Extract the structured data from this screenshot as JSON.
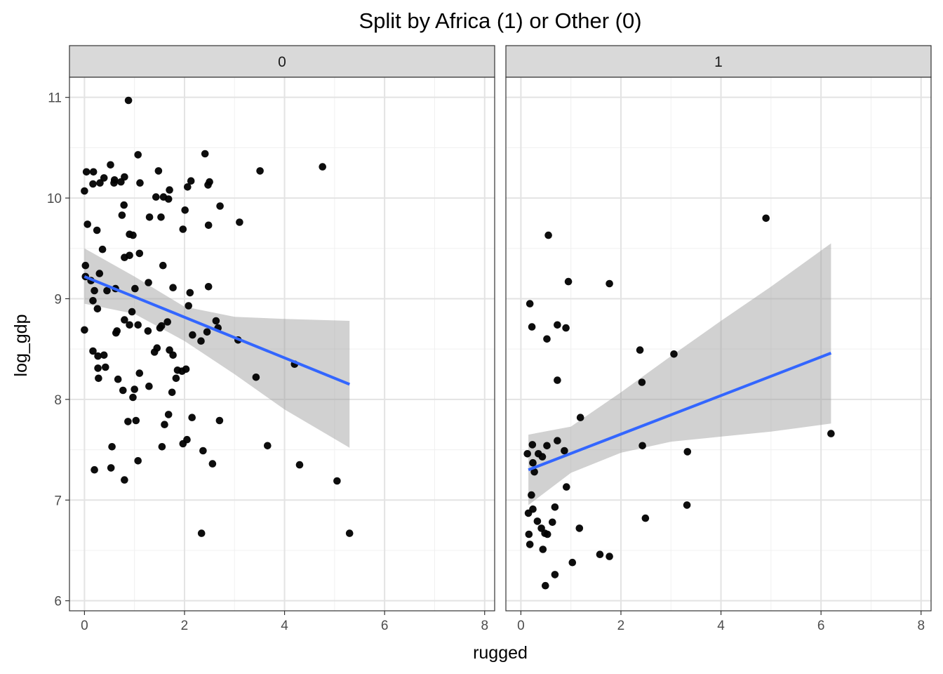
{
  "chart_data": {
    "type": "scatter",
    "title": "Split by Africa (1) or Other (0)",
    "xlabel": "rugged",
    "ylabel": "log_gdp",
    "facet_by": "Africa",
    "xlim": [
      -0.3,
      8.2
    ],
    "ylim": [
      5.9,
      11.2
    ],
    "x_ticks": [
      0,
      2,
      4,
      6,
      8
    ],
    "y_ticks": [
      6,
      7,
      8,
      9,
      10,
      11
    ],
    "grid": true,
    "point_color": "#000000",
    "line_color": "#3366FF",
    "band_color": "#999999",
    "panels": [
      {
        "label": "0",
        "fit": {
          "x": [
            0.0,
            5.3
          ],
          "y": [
            9.22,
            8.15
          ]
        },
        "band": {
          "x": [
            0.0,
            1.0,
            2.0,
            3.0,
            4.0,
            5.3
          ],
          "lower": [
            8.95,
            8.85,
            8.58,
            8.25,
            7.9,
            7.52
          ],
          "upper": [
            9.5,
            9.22,
            8.92,
            8.82,
            8.8,
            8.78
          ]
        },
        "points": [
          [
            0.88,
            10.97
          ],
          [
            0.04,
            10.26
          ],
          [
            0.18,
            10.26
          ],
          [
            0.31,
            10.15
          ],
          [
            0.39,
            10.2
          ],
          [
            0.52,
            10.33
          ],
          [
            0.6,
            10.18
          ],
          [
            0.73,
            10.16
          ],
          [
            0.8,
            10.21
          ],
          [
            0.0,
            10.07
          ],
          [
            0.17,
            10.14
          ],
          [
            0.59,
            10.15
          ],
          [
            1.07,
            10.43
          ],
          [
            1.11,
            10.15
          ],
          [
            1.48,
            10.27
          ],
          [
            1.7,
            10.08
          ],
          [
            2.06,
            10.11
          ],
          [
            2.13,
            10.17
          ],
          [
            2.41,
            10.44
          ],
          [
            2.47,
            10.13
          ],
          [
            2.5,
            10.16
          ],
          [
            3.51,
            10.27
          ],
          [
            4.76,
            10.31
          ],
          [
            0.79,
            9.93
          ],
          [
            0.75,
            9.83
          ],
          [
            1.3,
            9.81
          ],
          [
            1.43,
            10.01
          ],
          [
            1.53,
            9.81
          ],
          [
            1.58,
            10.01
          ],
          [
            1.68,
            9.99
          ],
          [
            2.01,
            9.88
          ],
          [
            2.71,
            9.92
          ],
          [
            0.06,
            9.74
          ],
          [
            0.25,
            9.68
          ],
          [
            0.9,
            9.64
          ],
          [
            0.97,
            9.63
          ],
          [
            1.97,
            9.69
          ],
          [
            2.48,
            9.73
          ],
          [
            3.1,
            9.76
          ],
          [
            0.36,
            9.49
          ],
          [
            0.8,
            9.41
          ],
          [
            0.9,
            9.43
          ],
          [
            1.1,
            9.45
          ],
          [
            1.57,
            9.33
          ],
          [
            0.02,
            9.33
          ],
          [
            0.02,
            9.22
          ],
          [
            0.3,
            9.25
          ],
          [
            1.28,
            9.16
          ],
          [
            0.13,
            9.18
          ],
          [
            0.45,
            9.08
          ],
          [
            0.62,
            9.1
          ],
          [
            1.01,
            9.1
          ],
          [
            1.77,
            9.11
          ],
          [
            2.48,
            9.12
          ],
          [
            2.11,
            9.06
          ],
          [
            0.2,
            9.08
          ],
          [
            0.17,
            8.98
          ],
          [
            0.26,
            8.9
          ],
          [
            0.95,
            8.87
          ],
          [
            2.08,
            8.93
          ],
          [
            0.0,
            8.69
          ],
          [
            0.8,
            8.79
          ],
          [
            0.9,
            8.74
          ],
          [
            1.07,
            8.74
          ],
          [
            0.65,
            8.68
          ],
          [
            0.63,
            8.66
          ],
          [
            1.27,
            8.68
          ],
          [
            1.51,
            8.71
          ],
          [
            1.54,
            8.73
          ],
          [
            1.66,
            8.77
          ],
          [
            2.45,
            8.67
          ],
          [
            2.63,
            8.78
          ],
          [
            2.67,
            8.71
          ],
          [
            2.16,
            8.64
          ],
          [
            2.33,
            8.58
          ],
          [
            3.07,
            8.59
          ],
          [
            0.17,
            8.48
          ],
          [
            0.27,
            8.43
          ],
          [
            0.39,
            8.44
          ],
          [
            1.4,
            8.47
          ],
          [
            1.45,
            8.51
          ],
          [
            1.7,
            8.49
          ],
          [
            1.77,
            8.44
          ],
          [
            4.2,
            8.35
          ],
          [
            0.27,
            8.31
          ],
          [
            0.42,
            8.32
          ],
          [
            1.1,
            8.26
          ],
          [
            1.86,
            8.29
          ],
          [
            1.95,
            8.28
          ],
          [
            2.03,
            8.3
          ],
          [
            0.28,
            8.21
          ],
          [
            0.67,
            8.2
          ],
          [
            1.29,
            8.13
          ],
          [
            1.83,
            8.21
          ],
          [
            3.43,
            8.22
          ],
          [
            0.77,
            8.09
          ],
          [
            0.97,
            8.02
          ],
          [
            1.0,
            8.1
          ],
          [
            1.75,
            8.07
          ],
          [
            1.68,
            7.85
          ],
          [
            0.87,
            7.78
          ],
          [
            1.03,
            7.79
          ],
          [
            1.6,
            7.75
          ],
          [
            2.15,
            7.82
          ],
          [
            2.7,
            7.79
          ],
          [
            2.05,
            7.6
          ],
          [
            1.97,
            7.56
          ],
          [
            0.55,
            7.53
          ],
          [
            1.55,
            7.53
          ],
          [
            2.37,
            7.49
          ],
          [
            3.66,
            7.54
          ],
          [
            0.2,
            7.3
          ],
          [
            0.53,
            7.32
          ],
          [
            1.07,
            7.39
          ],
          [
            2.56,
            7.36
          ],
          [
            4.3,
            7.35
          ],
          [
            0.8,
            7.2
          ],
          [
            5.05,
            7.19
          ],
          [
            2.34,
            6.67
          ],
          [
            5.3,
            6.67
          ]
        ]
      },
      {
        "label": "1",
        "fit": {
          "x": [
            0.15,
            6.2
          ],
          "y": [
            7.3,
            8.46
          ]
        },
        "band": {
          "x": [
            0.15,
            1.0,
            2.0,
            3.0,
            4.0,
            5.0,
            6.2
          ],
          "lower": [
            6.95,
            7.27,
            7.47,
            7.58,
            7.63,
            7.68,
            7.76
          ],
          "upper": [
            7.65,
            7.73,
            8.07,
            8.43,
            8.78,
            9.12,
            9.55
          ]
        },
        "points": [
          [
            0.55,
            9.63
          ],
          [
            4.9,
            9.8
          ],
          [
            0.95,
            9.17
          ],
          [
            1.77,
            9.15
          ],
          [
            0.18,
            8.95
          ],
          [
            0.22,
            8.72
          ],
          [
            0.73,
            8.74
          ],
          [
            0.9,
            8.71
          ],
          [
            0.52,
            8.6
          ],
          [
            2.38,
            8.49
          ],
          [
            3.06,
            8.45
          ],
          [
            0.73,
            8.19
          ],
          [
            2.42,
            8.17
          ],
          [
            1.19,
            7.82
          ],
          [
            6.2,
            7.66
          ],
          [
            0.73,
            7.59
          ],
          [
            0.23,
            7.55
          ],
          [
            0.52,
            7.54
          ],
          [
            2.43,
            7.54
          ],
          [
            0.87,
            7.49
          ],
          [
            0.13,
            7.46
          ],
          [
            0.35,
            7.46
          ],
          [
            0.43,
            7.43
          ],
          [
            3.33,
            7.48
          ],
          [
            0.24,
            7.37
          ],
          [
            0.27,
            7.28
          ],
          [
            0.91,
            7.13
          ],
          [
            0.21,
            7.05
          ],
          [
            0.68,
            6.93
          ],
          [
            0.24,
            6.91
          ],
          [
            3.32,
            6.95
          ],
          [
            0.15,
            6.87
          ],
          [
            0.33,
            6.79
          ],
          [
            0.63,
            6.78
          ],
          [
            1.17,
            6.72
          ],
          [
            0.41,
            6.72
          ],
          [
            2.49,
            6.82
          ],
          [
            0.48,
            6.67
          ],
          [
            0.53,
            6.66
          ],
          [
            0.16,
            6.66
          ],
          [
            0.18,
            6.56
          ],
          [
            0.44,
            6.51
          ],
          [
            1.58,
            6.46
          ],
          [
            1.77,
            6.44
          ],
          [
            1.03,
            6.38
          ],
          [
            0.68,
            6.26
          ],
          [
            0.49,
            6.15
          ]
        ]
      }
    ]
  }
}
